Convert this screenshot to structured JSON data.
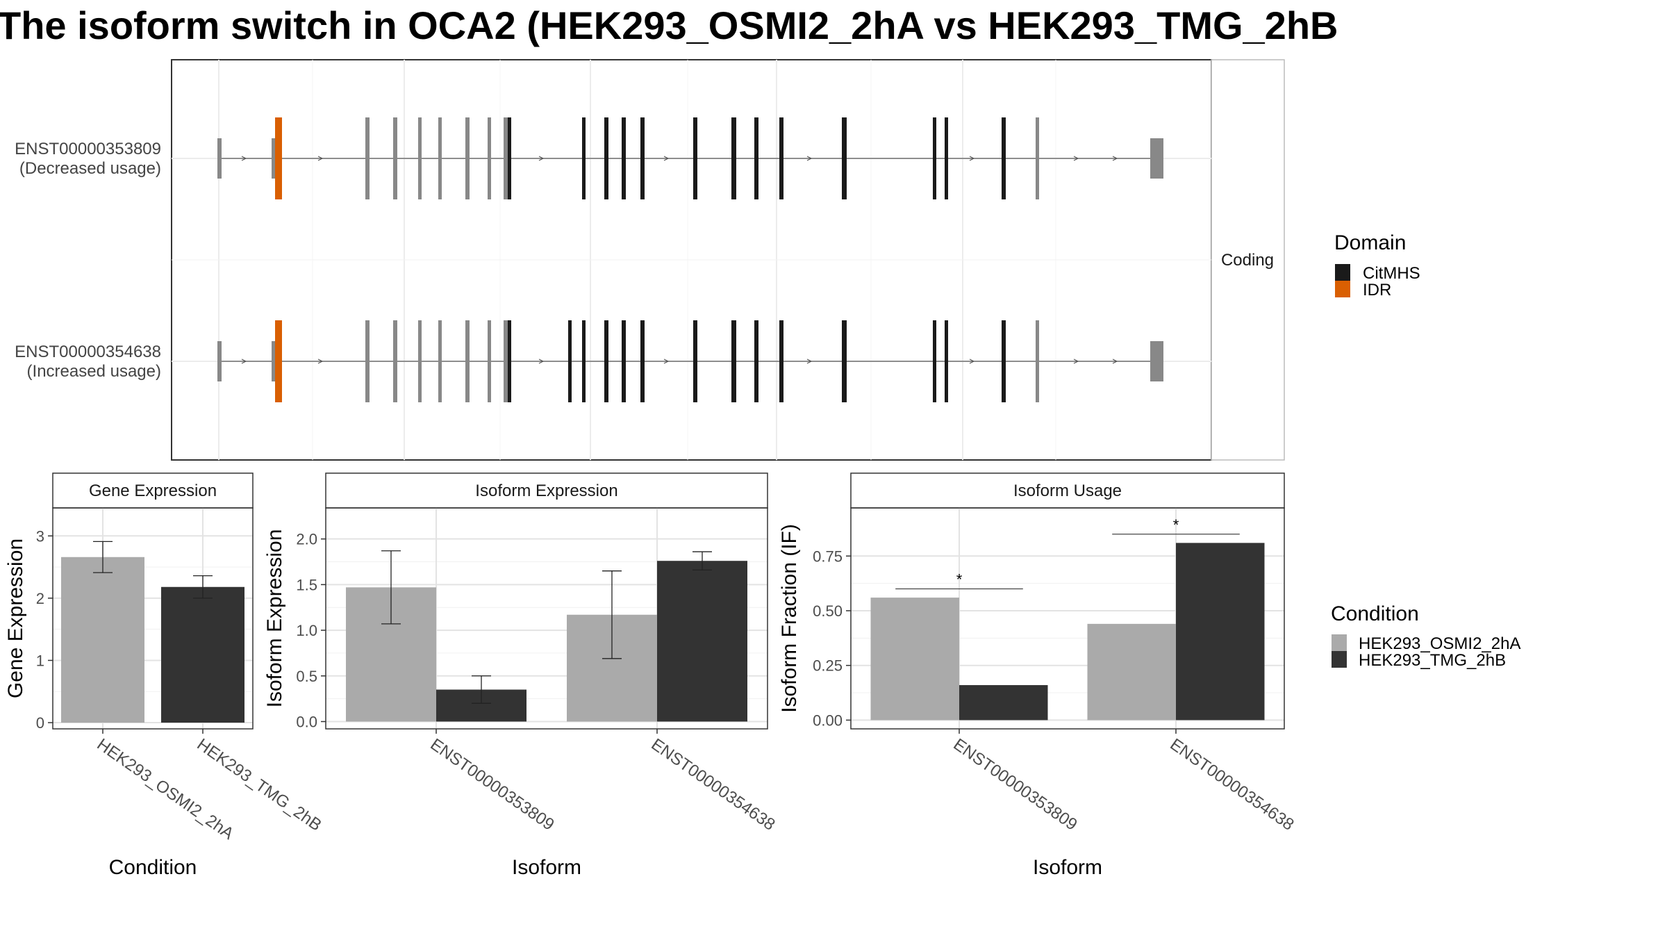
{
  "title": "The isoform switch in OCA2 (HEK293_OSMI2_2hA vs HEK293_TMG_2hB",
  "colors": {
    "condition_a": "#aaaaaa",
    "condition_b": "#333333",
    "domain_citmhs": "#1a1a1a",
    "domain_idr": "#d95f02",
    "exon_plain": "#888888"
  },
  "structure_panel": {
    "facet_label": "Coding",
    "transcripts": [
      {
        "id": "ENST00000353809",
        "note": "(Decreased usage)"
      },
      {
        "id": "ENST00000354638",
        "note": "(Increased usage)"
      }
    ]
  },
  "domain_legend": {
    "title": "Domain",
    "items": [
      {
        "label": "CitMHS",
        "color": "#1a1a1a"
      },
      {
        "label": "IDR",
        "color": "#d95f02"
      }
    ]
  },
  "condition_legend": {
    "title": "Condition",
    "items": [
      {
        "label": "HEK293_OSMI2_2hA",
        "color": "#aaaaaa"
      },
      {
        "label": "HEK293_TMG_2hB",
        "color": "#333333"
      }
    ]
  },
  "chart_data": [
    {
      "type": "bar",
      "title": "Gene Expression",
      "xlabel": "Condition",
      "ylabel": "Gene Expression",
      "categories": [
        "HEK293_OSMI2_2hA",
        "HEK293_TMG_2hB"
      ],
      "values": [
        2.66,
        2.18
      ],
      "error_low": [
        2.41,
        2.0
      ],
      "error_high": [
        2.91,
        2.36
      ],
      "yticks": [
        "0",
        "1",
        "2",
        "3"
      ],
      "ylim": [
        -0.1,
        3.45
      ],
      "grid": true
    },
    {
      "type": "bar",
      "title": "Isoform Expression",
      "xlabel": "Isoform",
      "ylabel": "Isoform Expression",
      "categories": [
        "ENST00000353809",
        "ENST00000354638"
      ],
      "series": [
        {
          "name": "HEK293_OSMI2_2hA",
          "values": [
            1.47,
            1.17
          ],
          "error_low": [
            1.07,
            0.69
          ],
          "error_high": [
            1.87,
            1.65
          ]
        },
        {
          "name": "HEK293_TMG_2hB",
          "values": [
            0.35,
            1.76
          ],
          "error_low": [
            0.2,
            1.66
          ],
          "error_high": [
            0.5,
            1.86
          ]
        }
      ],
      "yticks": [
        "0.0",
        "0.5",
        "1.0",
        "1.5",
        "2.0"
      ],
      "ylim": [
        -0.08,
        2.34
      ],
      "grid": true
    },
    {
      "type": "bar",
      "title": "Isoform Usage",
      "xlabel": "Isoform",
      "ylabel": "Isoform Fraction (IF)",
      "categories": [
        "ENST00000353809",
        "ENST00000354638"
      ],
      "series": [
        {
          "name": "HEK293_OSMI2_2hA",
          "values": [
            0.56,
            0.44
          ]
        },
        {
          "name": "HEK293_TMG_2hB",
          "values": [
            0.16,
            0.81
          ]
        }
      ],
      "significance": [
        {
          "category": "ENST00000353809",
          "label": "*",
          "y": 0.6
        },
        {
          "category": "ENST00000354638",
          "label": "*",
          "y": 0.85
        }
      ],
      "yticks": [
        "0.00",
        "0.25",
        "0.50",
        "0.75"
      ],
      "ylim": [
        -0.04,
        0.97
      ],
      "grid": true
    }
  ]
}
